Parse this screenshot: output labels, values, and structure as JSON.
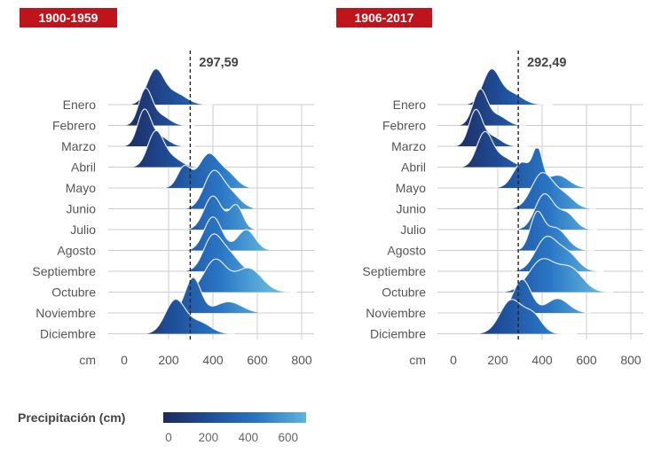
{
  "chart_data": [
    {
      "type": "ridgeline",
      "period": "1900-1959",
      "reference_value": 297.59,
      "reference_label": "297,59",
      "unit": "cm",
      "x_ticks": [
        "0",
        "200",
        "400",
        "600",
        "800"
      ],
      "xlim": [
        0,
        800
      ],
      "grid": true,
      "series": [
        {
          "month": "Enero",
          "peaks": [
            {
              "x": 140,
              "h": 1.05,
              "w": 38
            },
            {
              "x": 230,
              "h": 0.35,
              "w": 50
            }
          ],
          "end": 400
        },
        {
          "month": "Febrero",
          "peaks": [
            {
              "x": 95,
              "h": 1.1,
              "w": 30
            },
            {
              "x": 165,
              "h": 0.3,
              "w": 40
            }
          ],
          "end": 320
        },
        {
          "month": "Marzo",
          "peaks": [
            {
              "x": 90,
              "h": 1.1,
              "w": 30
            },
            {
              "x": 160,
              "h": 0.3,
              "w": 40
            }
          ],
          "end": 320
        },
        {
          "month": "Abril",
          "peaks": [
            {
              "x": 140,
              "h": 1.05,
              "w": 35
            },
            {
              "x": 210,
              "h": 0.3,
              "w": 45
            }
          ],
          "end": 330
        },
        {
          "month": "Mayo",
          "peaks": [
            {
              "x": 270,
              "h": 0.65,
              "w": 30
            },
            {
              "x": 380,
              "h": 1.05,
              "w": 45
            },
            {
              "x": 470,
              "h": 0.4,
              "w": 40
            }
          ],
          "end": 560
        },
        {
          "month": "Junio",
          "peaks": [
            {
              "x": 400,
              "h": 1.1,
              "w": 42
            },
            {
              "x": 480,
              "h": 0.45,
              "w": 45
            }
          ],
          "end": 580
        },
        {
          "month": "Julio",
          "peaks": [
            {
              "x": 400,
              "h": 1.05,
              "w": 40
            },
            {
              "x": 505,
              "h": 0.75,
              "w": 30
            }
          ],
          "end": 600
        },
        {
          "month": "Agosto",
          "peaks": [
            {
              "x": 400,
              "h": 1.05,
              "w": 40
            },
            {
              "x": 550,
              "h": 0.65,
              "w": 40
            }
          ],
          "end": 660
        },
        {
          "month": "Septiembre",
          "peaks": [
            {
              "x": 400,
              "h": 1.1,
              "w": 42
            },
            {
              "x": 480,
              "h": 0.45,
              "w": 40
            }
          ],
          "end": 560
        },
        {
          "month": "Octubre",
          "peaks": [
            {
              "x": 410,
              "h": 1.0,
              "w": 50
            },
            {
              "x": 560,
              "h": 0.75,
              "w": 60
            }
          ],
          "end": 780
        },
        {
          "month": "Noviembre",
          "peaks": [
            {
              "x": 310,
              "h": 1.1,
              "w": 35
            },
            {
              "x": 470,
              "h": 0.35,
              "w": 60
            }
          ],
          "end": 600
        },
        {
          "month": "Diciembre",
          "peaks": [
            {
              "x": 230,
              "h": 1.05,
              "w": 45
            },
            {
              "x": 340,
              "h": 0.35,
              "w": 50
            }
          ],
          "end": 500
        }
      ]
    },
    {
      "type": "ridgeline",
      "period": "1906-2017",
      "reference_value": 292.49,
      "reference_label": "292,49",
      "unit": "cm",
      "x_ticks": [
        "0",
        "200",
        "400",
        "600",
        "800"
      ],
      "xlim": [
        0,
        800
      ],
      "grid": true,
      "series": [
        {
          "month": "Enero",
          "peaks": [
            {
              "x": 170,
              "h": 1.05,
              "w": 38
            },
            {
              "x": 260,
              "h": 0.35,
              "w": 50
            }
          ],
          "end": 450
        },
        {
          "month": "Febrero",
          "peaks": [
            {
              "x": 120,
              "h": 1.1,
              "w": 32
            },
            {
              "x": 200,
              "h": 0.3,
              "w": 40
            }
          ],
          "end": 330
        },
        {
          "month": "Marzo",
          "peaks": [
            {
              "x": 100,
              "h": 1.1,
              "w": 30
            },
            {
              "x": 175,
              "h": 0.3,
              "w": 40
            }
          ],
          "end": 340
        },
        {
          "month": "Abril",
          "peaks": [
            {
              "x": 140,
              "h": 1.05,
              "w": 35
            },
            {
              "x": 220,
              "h": 0.3,
              "w": 45
            }
          ],
          "end": 360
        },
        {
          "month": "Mayo",
          "peaks": [
            {
              "x": 310,
              "h": 0.8,
              "w": 40
            },
            {
              "x": 380,
              "h": 1.05,
              "w": 22
            },
            {
              "x": 470,
              "h": 0.4,
              "w": 50
            }
          ],
          "end": 620
        },
        {
          "month": "Junio",
          "peaks": [
            {
              "x": 400,
              "h": 1.1,
              "w": 48
            },
            {
              "x": 500,
              "h": 0.4,
              "w": 45
            }
          ],
          "end": 640
        },
        {
          "month": "Julio",
          "peaks": [
            {
              "x": 410,
              "h": 1.1,
              "w": 42
            },
            {
              "x": 510,
              "h": 0.5,
              "w": 40
            }
          ],
          "end": 650
        },
        {
          "month": "Agosto",
          "peaks": [
            {
              "x": 375,
              "h": 1.05,
              "w": 30
            },
            {
              "x": 460,
              "h": 0.7,
              "w": 50
            }
          ],
          "end": 640
        },
        {
          "month": "Septiembre",
          "peaks": [
            {
              "x": 420,
              "h": 1.05,
              "w": 50
            },
            {
              "x": 520,
              "h": 0.5,
              "w": 45
            }
          ],
          "end": 680
        },
        {
          "month": "Octubre",
          "peaks": [
            {
              "x": 400,
              "h": 1.0,
              "w": 60
            },
            {
              "x": 530,
              "h": 0.7,
              "w": 55
            }
          ],
          "end": 720
        },
        {
          "month": "Noviembre",
          "peaks": [
            {
              "x": 310,
              "h": 1.05,
              "w": 40
            },
            {
              "x": 470,
              "h": 0.45,
              "w": 50
            }
          ],
          "end": 620
        },
        {
          "month": "Diciembre",
          "peaks": [
            {
              "x": 260,
              "h": 1.05,
              "w": 50
            },
            {
              "x": 360,
              "h": 0.55,
              "w": 40
            }
          ],
          "end": 560
        }
      ]
    }
  ],
  "legend": {
    "title": "Precipitación (cm)",
    "ticks": [
      {
        "label": "0",
        "value": 0
      },
      {
        "label": "200",
        "value": 200
      },
      {
        "label": "400",
        "value": 400
      },
      {
        "label": "600",
        "value": 600
      }
    ],
    "range": [
      0,
      650
    ],
    "colors": [
      "#1e2a5e",
      "#1f4f99",
      "#2a76c6",
      "#5fb4dc"
    ]
  }
}
